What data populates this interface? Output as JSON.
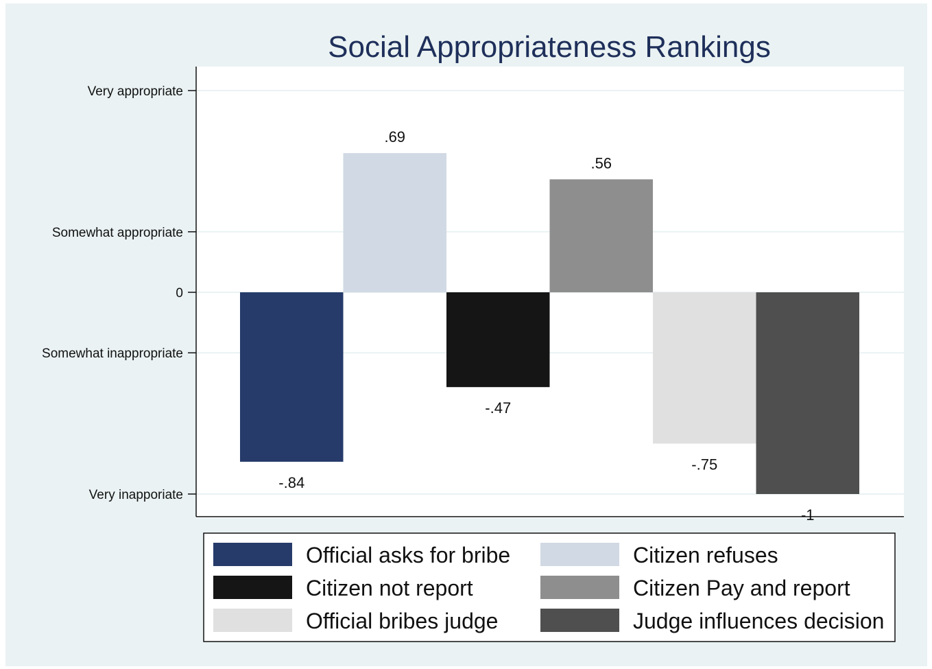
{
  "chart_data": {
    "type": "bar",
    "title": "Social Appropriateness Rankings",
    "xlabel": "",
    "ylabel": "",
    "ylim": [
      -1.1,
      1.0
    ],
    "yticks": [
      {
        "value": 1.0,
        "label": "Very appropriate"
      },
      {
        "value": 0.3,
        "label": "Somewhat appropriate"
      },
      {
        "value": 0,
        "label": "0"
      },
      {
        "value": -0.3,
        "label": "Somewhat inappropriate"
      },
      {
        "value": -1.0,
        "label": "Very inapporiate"
      }
    ],
    "grid": true,
    "legend_position": "bottom",
    "series": [
      {
        "name": "Official asks for bribe",
        "value": -0.84,
        "label": "-.84",
        "color": "#263b6a"
      },
      {
        "name": "Citizen refuses",
        "value": 0.69,
        "label": ".69",
        "color": "#d1d9e4"
      },
      {
        "name": "Citizen not report",
        "value": -0.47,
        "label": "-.47",
        "color": "#151515"
      },
      {
        "name": "Citizen Pay and report",
        "value": 0.56,
        "label": ".56",
        "color": "#8e8e8e"
      },
      {
        "name": "Official bribes judge",
        "value": -0.75,
        "label": "-.75",
        "color": "#e0e0e0"
      },
      {
        "name": "Judge influences decision",
        "value": -1.0,
        "label": "-1",
        "color": "#4f4f4f"
      }
    ]
  }
}
